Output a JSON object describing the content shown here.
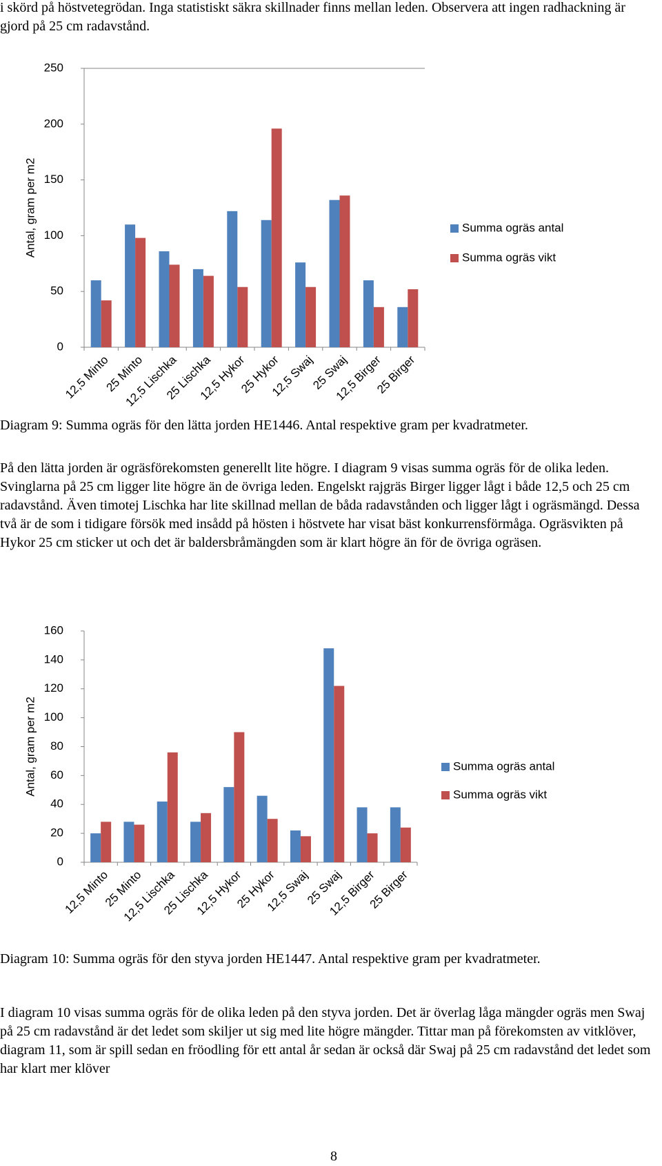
{
  "document": {
    "paragraphs": [
      "i skörd på höstvetegrödan. Inga statistiskt säkra skillnader finns mellan leden. Observera att ingen radhackning är gjord på 25 cm radavstånd.",
      "På den lätta jorden är ogräsförekomsten generellt lite högre. I diagram 9 visas summa ogräs för de olika leden. Svinglarna på 25 cm ligger lite högre än de övriga leden. Engelskt rajgräs Birger ligger lågt i både 12,5 och 25 cm radavstånd. Även timotej Lischka har lite skillnad mellan de båda radavstånden och ligger lågt i ogräsmängd. Dessa två är de som i tidigare försök med insådd på hösten i höstvete har visat bäst konkurrensförmåga. Ogräsvikten på Hykor 25 cm sticker ut och det är baldersbråmängden som är klart högre än för de övriga ogräsen.",
      "I diagram 10 visas summa ogräs för de olika leden på den styva jorden. Det är överlag låga mängder ogräs men Swaj på 25 cm radavstånd är det ledet som skiljer ut sig med lite högre mängder. Tittar man på förekomsten av vitklöver, diagram 11, som är spill sedan en fröodling för ett antal år sedan är också där Swaj på 25 cm radavstånd det ledet som har klart mer klöver"
    ],
    "captions": [
      "Diagram 9: Summa ogräs för den lätta jorden HE1446. Antal respektive gram per kvadratmeter.",
      "Diagram 10: Summa ogräs för den styva jorden HE1447. Antal respektive gram per kvadratmeter."
    ],
    "page_number": "8"
  },
  "chart_data": [
    {
      "type": "bar",
      "y_label": "Antal, gram per m2",
      "categories": [
        "12,5 Minto",
        "25 Minto",
        "12,5 Lischka",
        "25 Lischka",
        "12,5 Hykor",
        "25 Hykor",
        "12,5 Swaj",
        "25 Swaj",
        "12,5 Birger",
        "25 Birger"
      ],
      "series": [
        {
          "name": "Summa ogräs antal",
          "color": "#4f81bd",
          "values": [
            60,
            110,
            86,
            70,
            122,
            114,
            76,
            132,
            60,
            36
          ]
        },
        {
          "name": "Summa ogräs vikt",
          "color": "#c0504d",
          "values": [
            42,
            98,
            74,
            64,
            54,
            196,
            54,
            136,
            36,
            52
          ]
        }
      ],
      "ylim": [
        0,
        250
      ],
      "yticks": [
        0,
        50,
        100,
        150,
        200,
        250
      ],
      "grid": false,
      "legend": "right"
    },
    {
      "type": "bar",
      "y_label": "Antal, gram per m2",
      "categories": [
        "12,5 Minto",
        "25 Minto",
        "12,5 Lischka",
        "25 Lischka",
        "12,5 Hykor",
        "25 Hykor",
        "12,5 Swaj",
        "25 Swaj",
        "12,5 Birger",
        "25 Birger"
      ],
      "series": [
        {
          "name": "Summa ogräs antal",
          "color": "#4f81bd",
          "values": [
            20,
            28,
            42,
            28,
            52,
            46,
            22,
            148,
            38,
            38
          ]
        },
        {
          "name": "Summa ogräs vikt",
          "color": "#c0504d",
          "values": [
            28,
            26,
            76,
            34,
            90,
            30,
            18,
            122,
            20,
            24
          ]
        }
      ],
      "ylim": [
        0,
        160
      ],
      "yticks": [
        0,
        20,
        40,
        60,
        80,
        100,
        120,
        140,
        160
      ],
      "grid": false,
      "legend": "right"
    }
  ]
}
